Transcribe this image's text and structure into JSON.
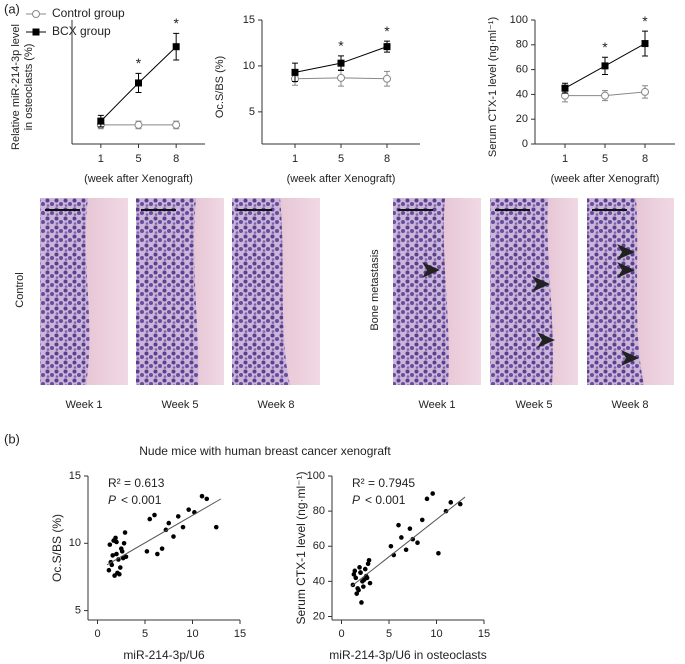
{
  "panels": {
    "a": "(a)",
    "b": "(b)"
  },
  "histology": {
    "control_label": "Control",
    "metastasis_label": "Bone metastasis",
    "control_weeks": [
      "Week 1",
      "Week 5",
      "Week 8"
    ],
    "metastasis_weeks": [
      "Week 1",
      "Week 5",
      "Week 8"
    ]
  },
  "subtitle_b": "Nude mice with human breast cancer xenograft",
  "chart_data": [
    {
      "type": "line",
      "ylabel": [
        "Relative miR-214-3p level",
        "in osteoclasts (%)"
      ],
      "xlabel": "(week after Xenograft)",
      "categories": [
        "1",
        "5",
        "8"
      ],
      "ylim": [
        0,
        6.5
      ],
      "legend": "top-left",
      "series": [
        {
          "name": "Control group",
          "color": "#888888",
          "marker": "circle",
          "values": [
            1.0,
            1.0,
            1.0
          ],
          "errors": [
            0.2,
            0.2,
            0.2
          ]
        },
        {
          "name": "BCX group",
          "color": "#000000",
          "marker": "square",
          "values": [
            1.2,
            3.2,
            5.1
          ],
          "errors": [
            0.3,
            0.5,
            0.7
          ]
        }
      ],
      "annotations": [
        {
          "x": "5",
          "text": "*"
        },
        {
          "x": "8",
          "text": "*"
        }
      ]
    },
    {
      "type": "line",
      "ylabel": [
        "Oc.S/BS (%)"
      ],
      "xlabel": "(week after Xenograft)",
      "categories": [
        "1",
        "5",
        "8"
      ],
      "ylim": [
        1.5,
        15
      ],
      "yticks": [
        5,
        10,
        15
      ],
      "series": [
        {
          "name": "Control group",
          "color": "#888888",
          "marker": "circle",
          "values": [
            8.6,
            8.7,
            8.6
          ],
          "errors": [
            0.7,
            0.9,
            0.8
          ]
        },
        {
          "name": "BCX group",
          "color": "#000000",
          "marker": "square",
          "values": [
            9.3,
            10.3,
            12.1
          ],
          "errors": [
            1.0,
            0.8,
            0.6
          ]
        }
      ],
      "annotations": [
        {
          "x": "5",
          "text": "*"
        },
        {
          "x": "8",
          "text": "*"
        }
      ]
    },
    {
      "type": "line",
      "ylabel": [
        "Serum CTX-1 level (ng·ml⁻¹)"
      ],
      "xlabel": "(week after Xenograft)",
      "categories": [
        "1",
        "5",
        "8"
      ],
      "ylim": [
        0,
        100
      ],
      "yticks": [
        0,
        20,
        40,
        60,
        80,
        100
      ],
      "series": [
        {
          "name": "Control group",
          "color": "#888888",
          "marker": "circle",
          "values": [
            39,
            39,
            42
          ],
          "errors": [
            5,
            4,
            5
          ]
        },
        {
          "name": "BCX group",
          "color": "#000000",
          "marker": "square",
          "values": [
            45,
            63,
            81
          ],
          "errors": [
            4,
            7,
            10
          ]
        }
      ],
      "annotations": [
        {
          "x": "5",
          "text": "*"
        },
        {
          "x": "8",
          "text": "*"
        }
      ]
    },
    {
      "type": "scatter",
      "ylabel": "Oc.S/BS (%)",
      "xlabel": "miR-214-3p/U6",
      "color": "#000000",
      "xlim": [
        -1,
        15
      ],
      "xticks": [
        0,
        5,
        10,
        15
      ],
      "ylim": [
        4.3,
        15
      ],
      "yticks": [
        5,
        10,
        15
      ],
      "r2": "R² = 0.613",
      "p_symbol": "P",
      "p_text": "< 0.001",
      "x": [
        1.2,
        1.5,
        1.8,
        2.0,
        2.2,
        2.5,
        2.8,
        1.3,
        1.7,
        2.1,
        2.4,
        2.6,
        3.0,
        1.4,
        1.9,
        2.3,
        2.7,
        1.6,
        2.0,
        2.9,
        5.2,
        5.5,
        6.0,
        6.3,
        6.8,
        7.2,
        7.5,
        8.0,
        8.5,
        9.0,
        9.6,
        10.2,
        11.0,
        11.5,
        12.5
      ],
      "y": [
        8.0,
        8.4,
        7.6,
        9.2,
        8.8,
        9.6,
        10.0,
        9.9,
        10.2,
        7.8,
        8.2,
        9.4,
        9.0,
        8.6,
        10.4,
        7.7,
        8.9,
        9.1,
        10.1,
        10.8,
        9.4,
        11.8,
        12.1,
        9.2,
        9.6,
        11.0,
        11.5,
        10.5,
        12.0,
        11.2,
        12.5,
        12.3,
        13.5,
        13.3,
        11.2
      ],
      "fit": {
        "x": [
          1,
          13
        ],
        "y": [
          8.4,
          13.3
        ]
      }
    },
    {
      "type": "scatter",
      "ylabel": "Serum CTX-1 level (ng·ml⁻¹)",
      "xlabel": "miR-214-3p/U6 in osteoclasts",
      "color": "#000000",
      "xlim": [
        -1,
        15
      ],
      "xticks": [
        0,
        5,
        10,
        15
      ],
      "ylim": [
        18,
        100
      ],
      "yticks": [
        20,
        40,
        60,
        80,
        100
      ],
      "r2": "R² = 0.7945",
      "p_symbol": "P",
      "p_text": "< 0.001",
      "x": [
        1.2,
        1.5,
        1.8,
        2.0,
        2.2,
        2.5,
        2.8,
        1.3,
        1.7,
        2.1,
        2.4,
        2.6,
        3.0,
        1.4,
        1.9,
        2.3,
        2.7,
        1.6,
        2.0,
        2.9,
        5.2,
        5.5,
        6.0,
        6.3,
        6.8,
        7.2,
        7.5,
        8.0,
        8.5,
        9.0,
        9.6,
        10.2,
        11.0,
        11.5,
        12.5
      ],
      "y": [
        38,
        42,
        35,
        45,
        40,
        47,
        50,
        44,
        36,
        28,
        41,
        43,
        39,
        46,
        48,
        37,
        42,
        33,
        45,
        52,
        60,
        55,
        72,
        65,
        58,
        70,
        64,
        62,
        75,
        87,
        90,
        56,
        80,
        85,
        84
      ],
      "fit": {
        "x": [
          1,
          13
        ],
        "y": [
          37,
          88
        ]
      }
    }
  ]
}
